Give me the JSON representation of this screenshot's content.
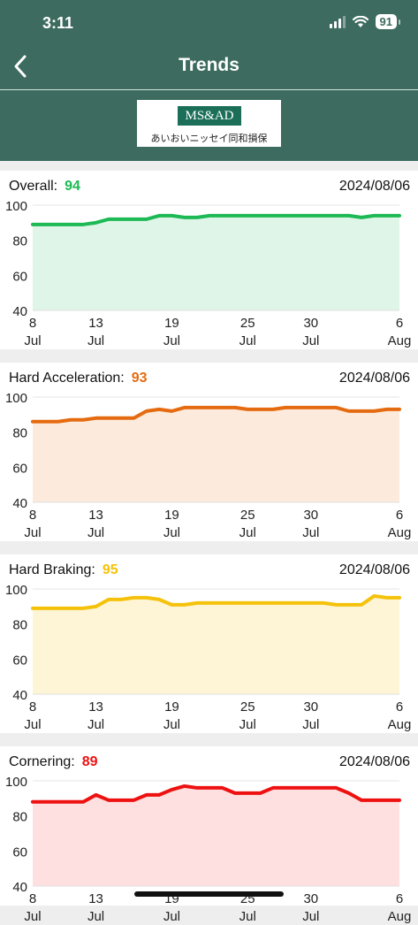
{
  "status_bar": {
    "time": "3:11",
    "battery": "91"
  },
  "nav": {
    "title": "Trends"
  },
  "logo": {
    "mark": "MS&AD",
    "text": "あいおいニッセイ同和損保"
  },
  "charts": [
    {
      "title": "Overall:",
      "score": "94",
      "date": "2024/08/06",
      "color": "#1db954",
      "fill": "#dff5e8"
    },
    {
      "title": "Hard Acceleration:",
      "score": "93",
      "date": "2024/08/06",
      "color": "#e56b10",
      "fill": "#fcebdd"
    },
    {
      "title": "Hard Braking:",
      "score": "95",
      "date": "2024/08/06",
      "color": "#f5c20b",
      "fill": "#fef5d6"
    },
    {
      "title": "Cornering:",
      "score": "89",
      "date": "2024/08/06",
      "color": "#ee1111",
      "fill": "#ffe0e0"
    }
  ],
  "chart_data": [
    {
      "type": "area",
      "title": "Overall: 94",
      "x": [
        "7/8",
        "7/9",
        "7/10",
        "7/11",
        "7/12",
        "7/13",
        "7/14",
        "7/15",
        "7/16",
        "7/17",
        "7/18",
        "7/19",
        "7/20",
        "7/21",
        "7/22",
        "7/23",
        "7/24",
        "7/25",
        "7/26",
        "7/27",
        "7/28",
        "7/29",
        "7/30",
        "7/31",
        "8/1",
        "8/2",
        "8/3",
        "8/4",
        "8/5",
        "8/6"
      ],
      "values": [
        89,
        89,
        89,
        89,
        89,
        90,
        92,
        92,
        92,
        92,
        94,
        94,
        93,
        93,
        94,
        94,
        94,
        94,
        94,
        94,
        94,
        94,
        94,
        94,
        94,
        94,
        93,
        94,
        94,
        94
      ],
      "ylim": [
        40,
        100
      ],
      "yticks": [
        "40",
        "60",
        "80",
        "100"
      ],
      "xticks": [
        {
          "day": "8",
          "month": "Jul",
          "index": 0
        },
        {
          "day": "13",
          "month": "Jul",
          "index": 5
        },
        {
          "day": "19",
          "month": "Jul",
          "index": 11
        },
        {
          "day": "25",
          "month": "Jul",
          "index": 17
        },
        {
          "day": "30",
          "month": "Jul",
          "index": 22
        },
        {
          "day": "6",
          "month": "Aug",
          "index": 29
        }
      ]
    },
    {
      "type": "area",
      "title": "Hard Acceleration: 93",
      "x": [
        "7/8",
        "7/9",
        "7/10",
        "7/11",
        "7/12",
        "7/13",
        "7/14",
        "7/15",
        "7/16",
        "7/17",
        "7/18",
        "7/19",
        "7/20",
        "7/21",
        "7/22",
        "7/23",
        "7/24",
        "7/25",
        "7/26",
        "7/27",
        "7/28",
        "7/29",
        "7/30",
        "7/31",
        "8/1",
        "8/2",
        "8/3",
        "8/4",
        "8/5",
        "8/6"
      ],
      "values": [
        86,
        86,
        86,
        87,
        87,
        88,
        88,
        88,
        88,
        92,
        93,
        92,
        94,
        94,
        94,
        94,
        94,
        93,
        93,
        93,
        94,
        94,
        94,
        94,
        94,
        92,
        92,
        92,
        93,
        93
      ],
      "ylim": [
        40,
        100
      ],
      "yticks": [
        "40",
        "60",
        "80",
        "100"
      ],
      "xticks": [
        {
          "day": "8",
          "month": "Jul",
          "index": 0
        },
        {
          "day": "13",
          "month": "Jul",
          "index": 5
        },
        {
          "day": "19",
          "month": "Jul",
          "index": 11
        },
        {
          "day": "25",
          "month": "Jul",
          "index": 17
        },
        {
          "day": "30",
          "month": "Jul",
          "index": 22
        },
        {
          "day": "6",
          "month": "Aug",
          "index": 29
        }
      ]
    },
    {
      "type": "area",
      "title": "Hard Braking: 95",
      "x": [
        "7/8",
        "7/9",
        "7/10",
        "7/11",
        "7/12",
        "7/13",
        "7/14",
        "7/15",
        "7/16",
        "7/17",
        "7/18",
        "7/19",
        "7/20",
        "7/21",
        "7/22",
        "7/23",
        "7/24",
        "7/25",
        "7/26",
        "7/27",
        "7/28",
        "7/29",
        "7/30",
        "7/31",
        "8/1",
        "8/2",
        "8/3",
        "8/4",
        "8/5",
        "8/6"
      ],
      "values": [
        89,
        89,
        89,
        89,
        89,
        90,
        94,
        94,
        95,
        95,
        94,
        91,
        91,
        92,
        92,
        92,
        92,
        92,
        92,
        92,
        92,
        92,
        92,
        92,
        91,
        91,
        91,
        96,
        95,
        95
      ],
      "ylim": [
        40,
        100
      ],
      "yticks": [
        "40",
        "60",
        "80",
        "100"
      ],
      "xticks": [
        {
          "day": "8",
          "month": "Jul",
          "index": 0
        },
        {
          "day": "13",
          "month": "Jul",
          "index": 5
        },
        {
          "day": "19",
          "month": "Jul",
          "index": 11
        },
        {
          "day": "25",
          "month": "Jul",
          "index": 17
        },
        {
          "day": "30",
          "month": "Jul",
          "index": 22
        },
        {
          "day": "6",
          "month": "Aug",
          "index": 29
        }
      ]
    },
    {
      "type": "area",
      "title": "Cornering: 89",
      "x": [
        "7/8",
        "7/9",
        "7/10",
        "7/11",
        "7/12",
        "7/13",
        "7/14",
        "7/15",
        "7/16",
        "7/17",
        "7/18",
        "7/19",
        "7/20",
        "7/21",
        "7/22",
        "7/23",
        "7/24",
        "7/25",
        "7/26",
        "7/27",
        "7/28",
        "7/29",
        "7/30",
        "7/31",
        "8/1",
        "8/2",
        "8/3",
        "8/4",
        "8/5",
        "8/6"
      ],
      "values": [
        88,
        88,
        88,
        88,
        88,
        92,
        89,
        89,
        89,
        92,
        92,
        95,
        97,
        96,
        96,
        96,
        93,
        93,
        93,
        96,
        96,
        96,
        96,
        96,
        96,
        93,
        89,
        89,
        89,
        89
      ],
      "ylim": [
        40,
        100
      ],
      "yticks": [
        "40",
        "60",
        "80",
        "100"
      ],
      "xticks": [
        {
          "day": "8",
          "month": "Jul",
          "index": 0
        },
        {
          "day": "13",
          "month": "Jul",
          "index": 5
        },
        {
          "day": "19",
          "month": "Jul",
          "index": 11
        },
        {
          "day": "25",
          "month": "Jul",
          "index": 17
        },
        {
          "day": "30",
          "month": "Jul",
          "index": 22
        },
        {
          "day": "6",
          "month": "Aug",
          "index": 29
        }
      ]
    }
  ]
}
